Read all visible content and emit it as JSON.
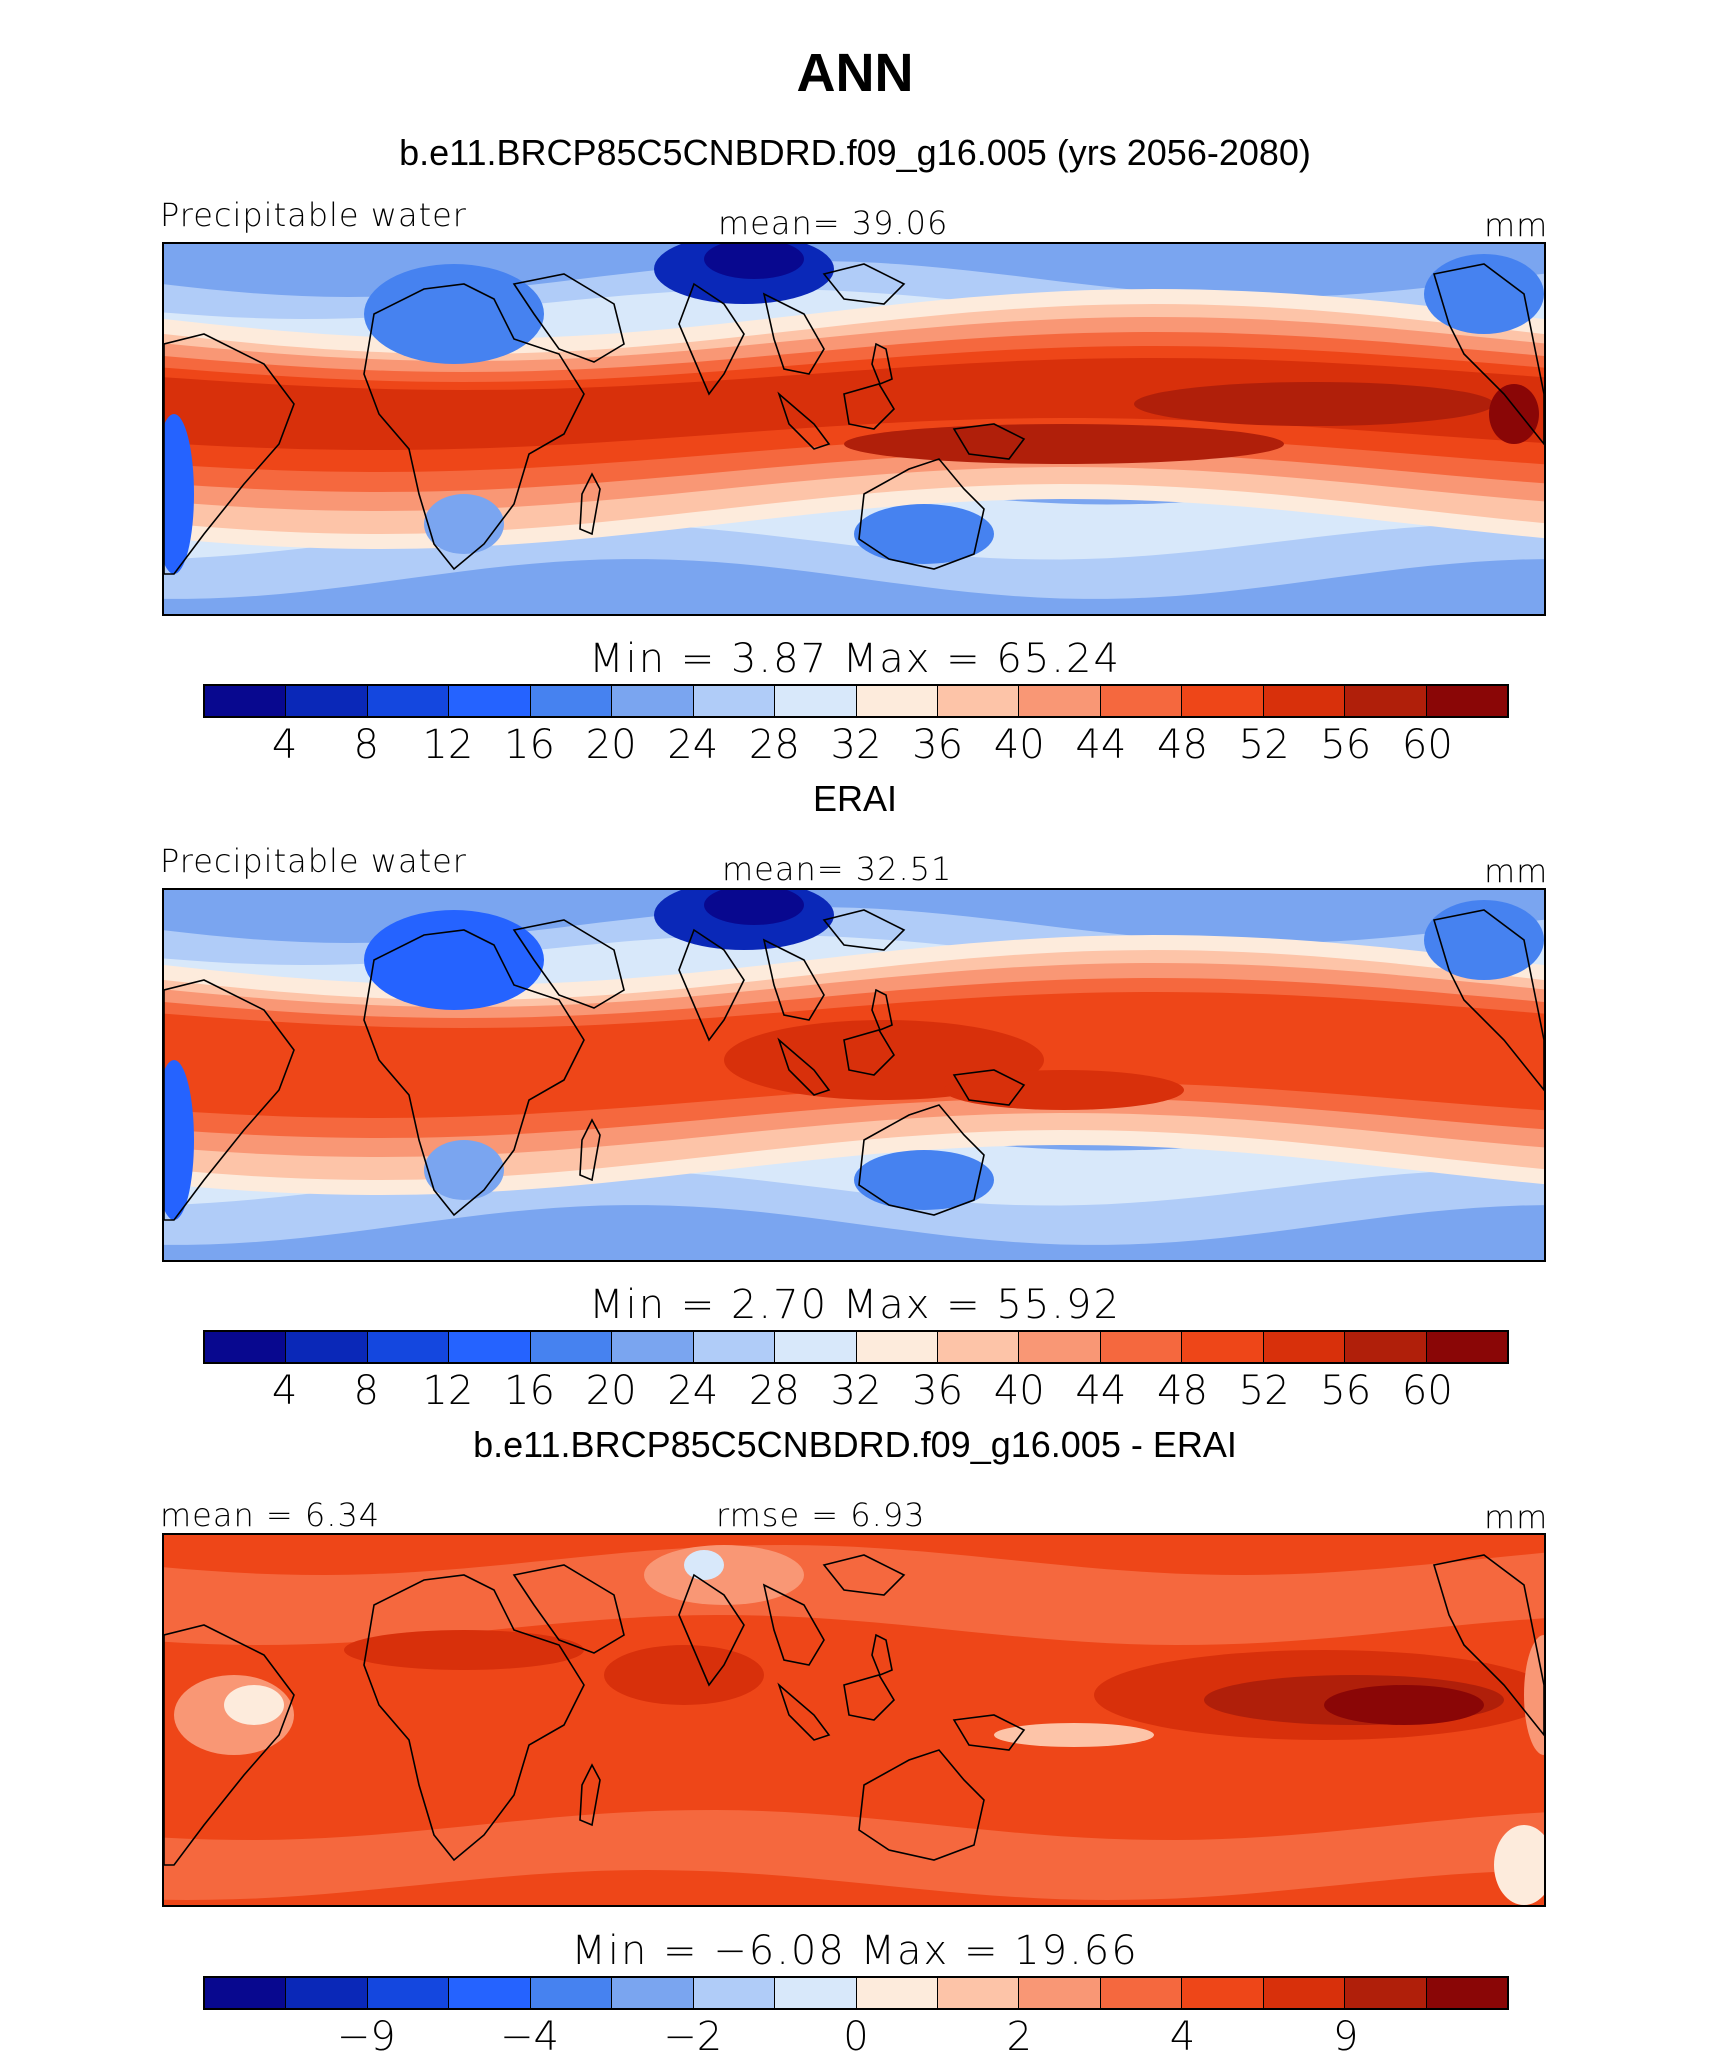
{
  "title": "ANN",
  "palette": [
    "#08088f",
    "#0a28b8",
    "#1447df",
    "#2563ff",
    "#4682f0",
    "#7aa5f0",
    "#b0ccf8",
    "#d8e8fa",
    "#fdebdc",
    "#fdc4a8",
    "#f99775",
    "#f5683e",
    "#ee4618",
    "#d8300b",
    "#b01f0a",
    "#8a0606"
  ],
  "panels": [
    {
      "subtitle": "b.e11.BRCP85C5CNBDRD.f09_g16.005 (yrs 2056-2080)",
      "left_label": "Precipitable water",
      "center_label": "mean=  39.06",
      "right_label": "mm",
      "minmax": "Min =    3.87 Max =   65.24",
      "ticks": [
        "4",
        "8",
        "12",
        "16",
        "20",
        "24",
        "28",
        "32",
        "36",
        "40",
        "44",
        "48",
        "52",
        "56",
        "60"
      ],
      "field": "model"
    },
    {
      "subtitle": "ERAI",
      "left_label": "Precipitable water",
      "center_label": "mean=  32.51",
      "right_label": "mm",
      "minmax": "Min =    2.70 Max =   55.92",
      "ticks": [
        "4",
        "8",
        "12",
        "16",
        "20",
        "24",
        "28",
        "32",
        "36",
        "40",
        "44",
        "48",
        "52",
        "56",
        "60"
      ],
      "field": "obs"
    },
    {
      "subtitle": "b.e11.BRCP85C5CNBDRD.f09_g16.005 - ERAI",
      "left_label": "mean =   6.34",
      "center_label": "rmse =    6.93",
      "right_label": "mm",
      "minmax": "Min =  −6.08 Max =   19.66",
      "ticks": [
        "−9",
        "−4",
        "−2",
        "0",
        "2",
        "4",
        "9"
      ],
      "field": "diff"
    }
  ]
}
